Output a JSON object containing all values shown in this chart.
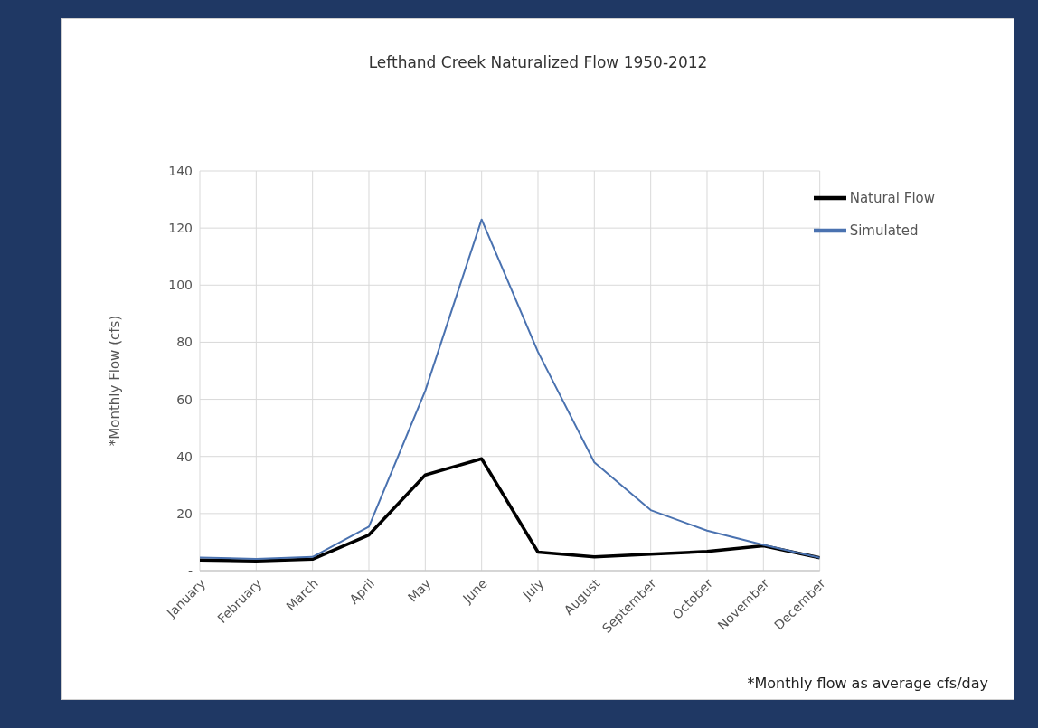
{
  "chart_data": {
    "type": "line",
    "title": "Lefthand Creek Naturalized Flow 1950-2012",
    "ylabel": "*Monthly Flow (cfs)",
    "categories": [
      "January",
      "February",
      "March",
      "April",
      "May",
      "June",
      "July",
      "August",
      "September",
      "October",
      "November",
      "December"
    ],
    "series": [
      {
        "name": "Natural Flow",
        "color": "#000000",
        "values": [
          3.7,
          3.4,
          4,
          12.5,
          33.5,
          39.2,
          6.5,
          4.8,
          5.8,
          6.7,
          8.7,
          4.5
        ]
      },
      {
        "name": "Simulated",
        "color": "#4a72b0",
        "values": [
          4.6,
          4.1,
          4.8,
          15.4,
          63,
          123,
          76.6,
          37.9,
          21.2,
          14,
          9,
          4.5
        ]
      }
    ],
    "ylim": [
      0,
      140
    ],
    "yticks": [
      {
        "value": 0,
        "label": "-"
      },
      20,
      40,
      60,
      80,
      100,
      120,
      140
    ],
    "grid": true,
    "legend": "top right",
    "marker": "none",
    "line_style": "solid",
    "annotations": [
      "*Monthly flow as average cfs/day"
    ]
  }
}
